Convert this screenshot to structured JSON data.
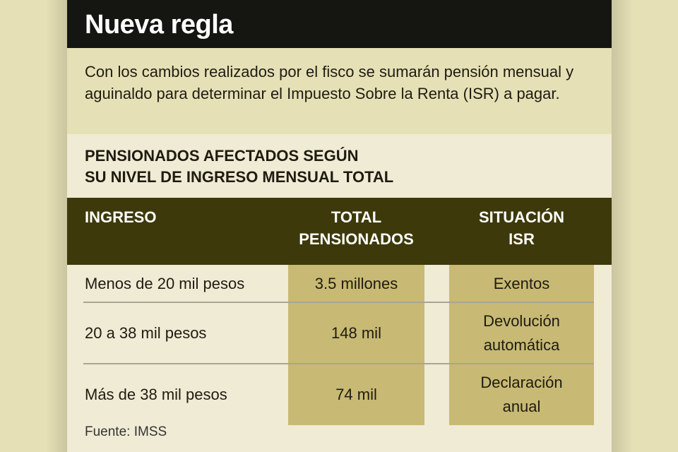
{
  "title": "Nueva regla",
  "intro": "Con los cambios realizados por el fisco se sumarán pensión mensual y aguinaldo para determinar el Impuesto Sobre la Renta (ISR) a pagar.",
  "subtitle_line1": "PENSIONADOS AFECTADOS SEGÚN",
  "subtitle_line2": "SU NIVEL DE INGRESO MENSUAL TOTAL",
  "headers": {
    "ingreso": "INGRESO",
    "total_1": "TOTAL",
    "total_2": "PENSIONADOS",
    "situacion_1": "SITUACIÓN",
    "situacion_2": "ISR"
  },
  "rows": [
    {
      "ingreso": "Menos de 20 mil pesos",
      "total": "3.5 millones",
      "situacion_1": "Exentos",
      "situacion_2": ""
    },
    {
      "ingreso": "20 a 38 mil pesos",
      "total": "148 mil",
      "situacion_1": "Devolución",
      "situacion_2": "automática"
    },
    {
      "ingreso": "Más de 38 mil pesos",
      "total": "74 mil",
      "situacion_1": "Declaración",
      "situacion_2": "anual"
    }
  ],
  "source": "Fuente: IMSS"
}
